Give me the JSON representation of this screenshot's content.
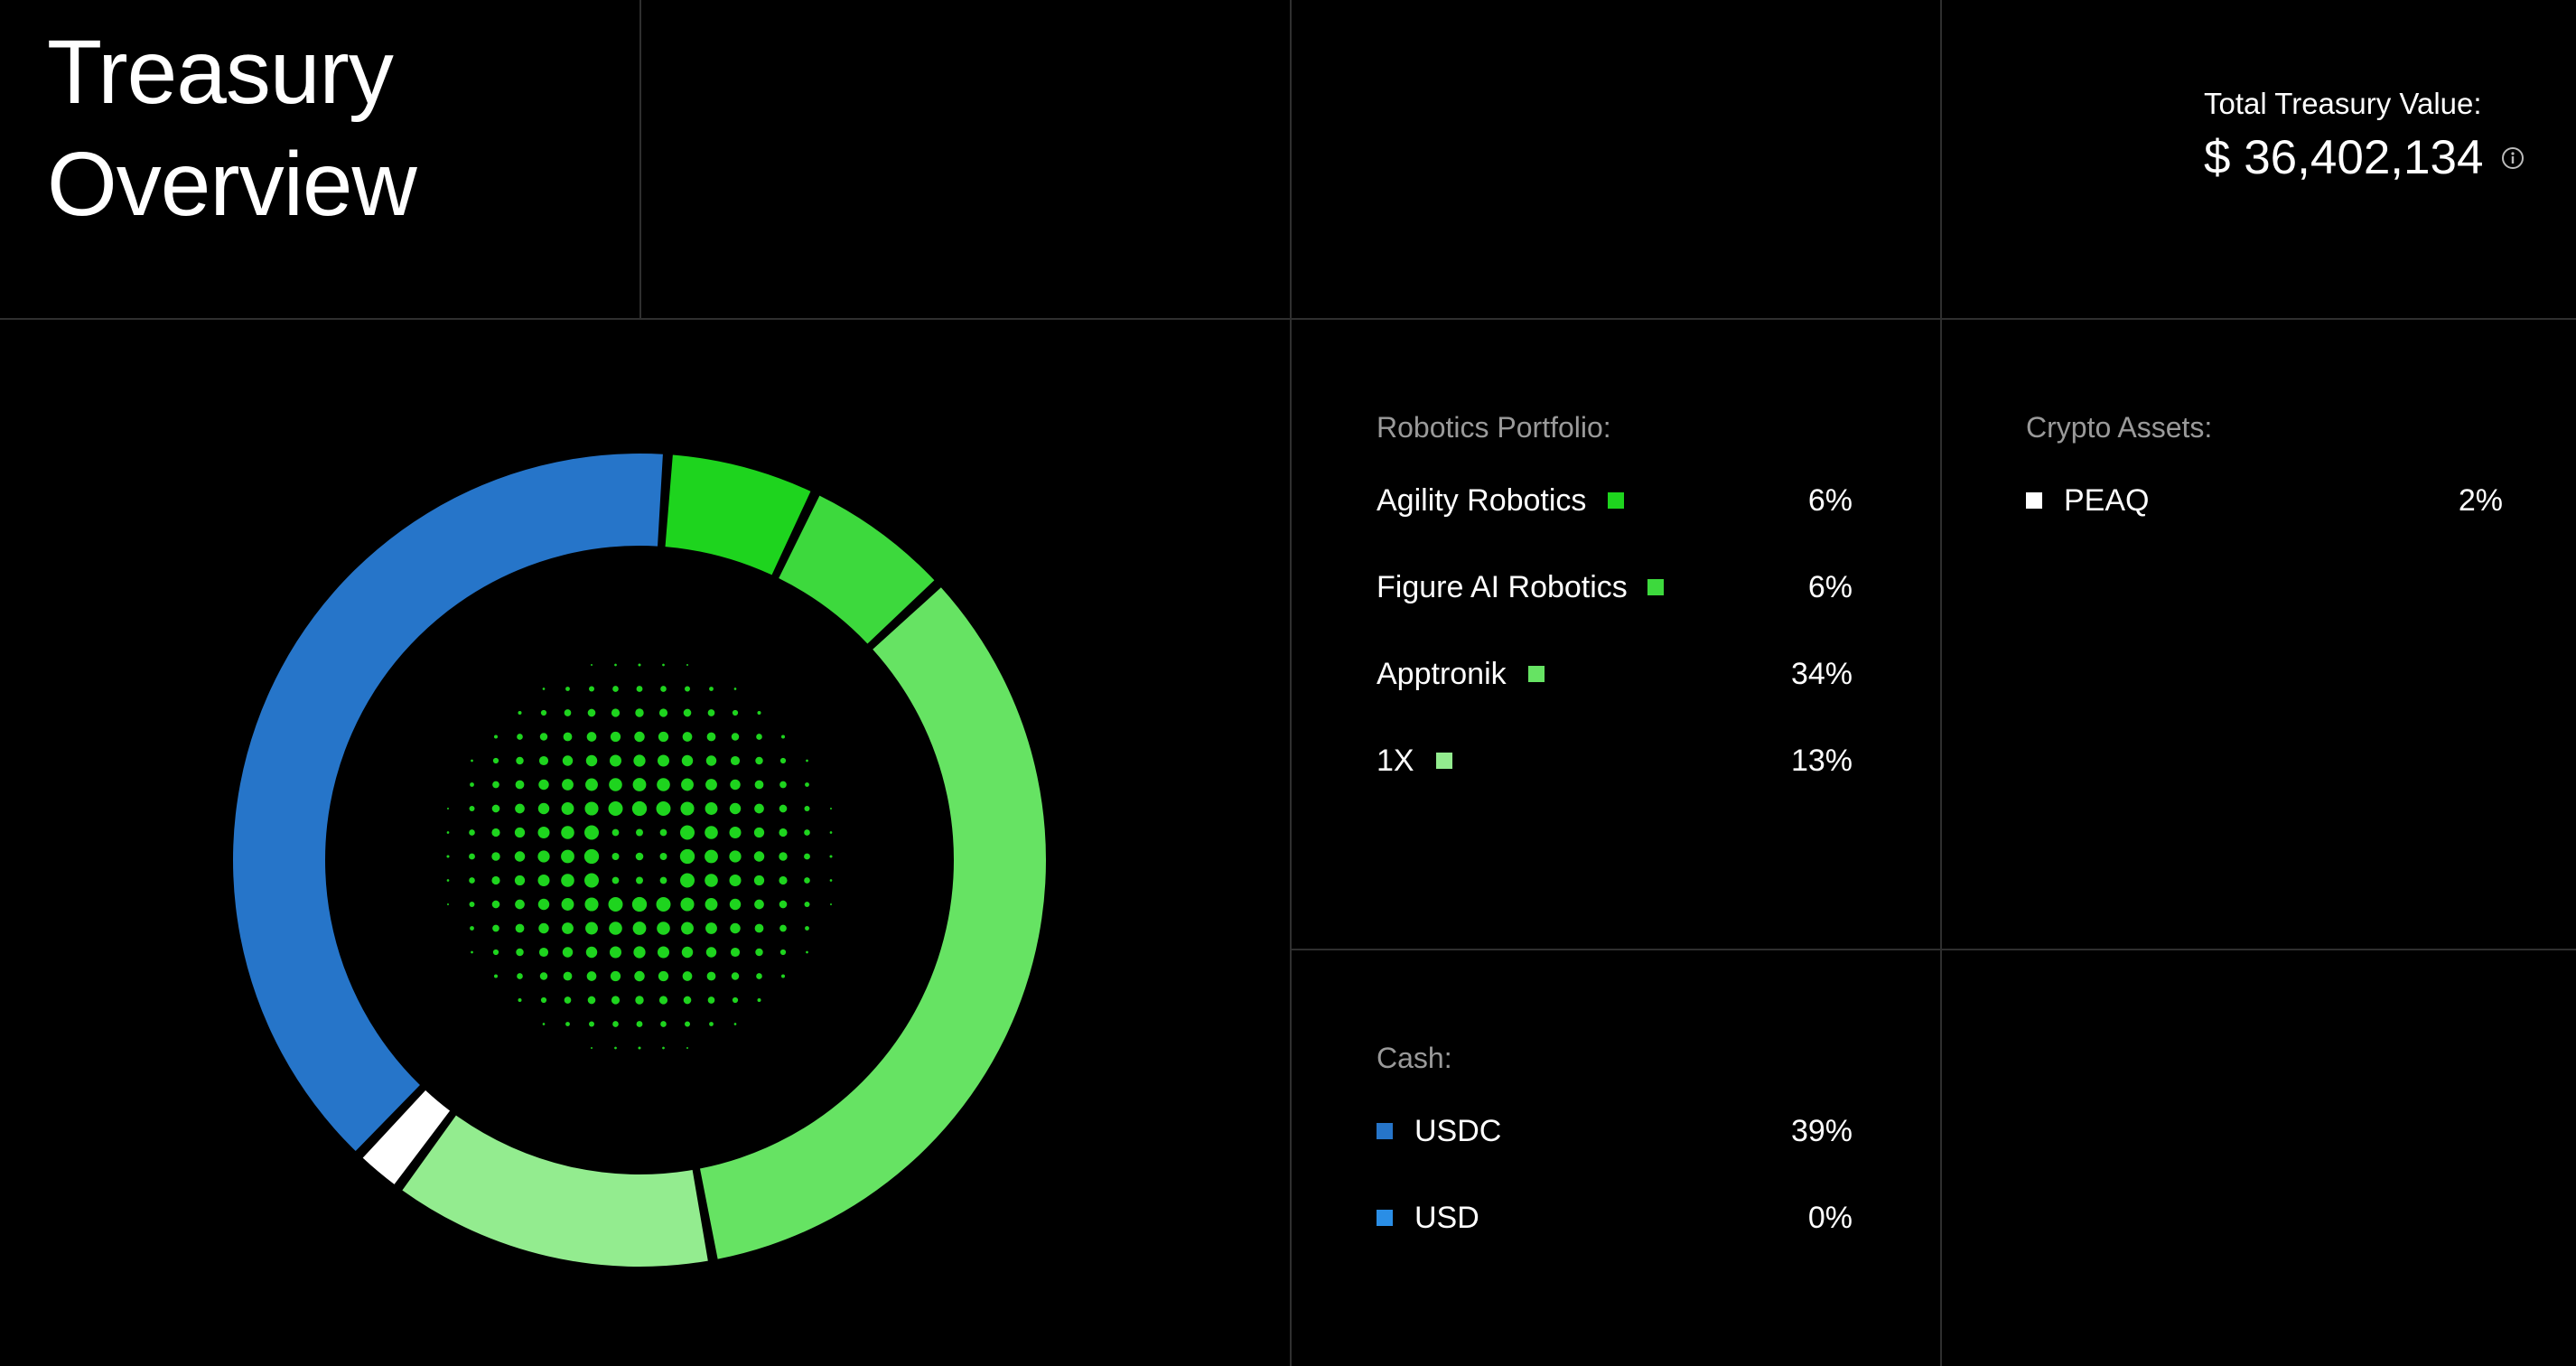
{
  "header": {
    "title_line1": "Treasury",
    "title_line2": "Overview",
    "total_label": "Total Treasury Value:",
    "total_value": "$ 36,402,134"
  },
  "sections": {
    "robotics": {
      "title": "Robotics Portfolio:",
      "items": [
        {
          "name": "Agility Robotics",
          "pct": "6%",
          "color": "#1ed41e"
        },
        {
          "name": "Figure AI Robotics",
          "pct": "6%",
          "color": "#3dd93d"
        },
        {
          "name": "Apptronik",
          "pct": "34%",
          "color": "#66e363"
        },
        {
          "name": "1X",
          "pct": "13%",
          "color": "#93ec8f"
        }
      ]
    },
    "crypto": {
      "title": "Crypto Assets:",
      "items": [
        {
          "name": "PEAQ",
          "pct": "2%",
          "color": "#ffffff"
        }
      ]
    },
    "cash": {
      "title": "Cash:",
      "items": [
        {
          "name": "USDC",
          "pct": "39%",
          "color": "#2675c9"
        },
        {
          "name": "USD",
          "pct": "0%",
          "color": "#2a8ee6"
        }
      ]
    }
  },
  "chart_data": {
    "type": "pie",
    "style": "donut",
    "slices": [
      {
        "label": "Agility Robotics",
        "value": 6,
        "color": "#1ed41e"
      },
      {
        "label": "Figure AI Robotics",
        "value": 6,
        "color": "#3dd93d"
      },
      {
        "label": "Apptronik",
        "value": 34,
        "color": "#66e363"
      },
      {
        "label": "1X",
        "value": 13,
        "color": "#93ec8f"
      },
      {
        "label": "PEAQ",
        "value": 2,
        "color": "#ffffff"
      },
      {
        "label": "USDC",
        "value": 39,
        "color": "#2675c9"
      },
      {
        "label": "USD",
        "value": 0,
        "color": "#2a8ee6"
      }
    ],
    "center_graphic": "green halftone dot sphere",
    "center_color": "#1ed41e"
  }
}
